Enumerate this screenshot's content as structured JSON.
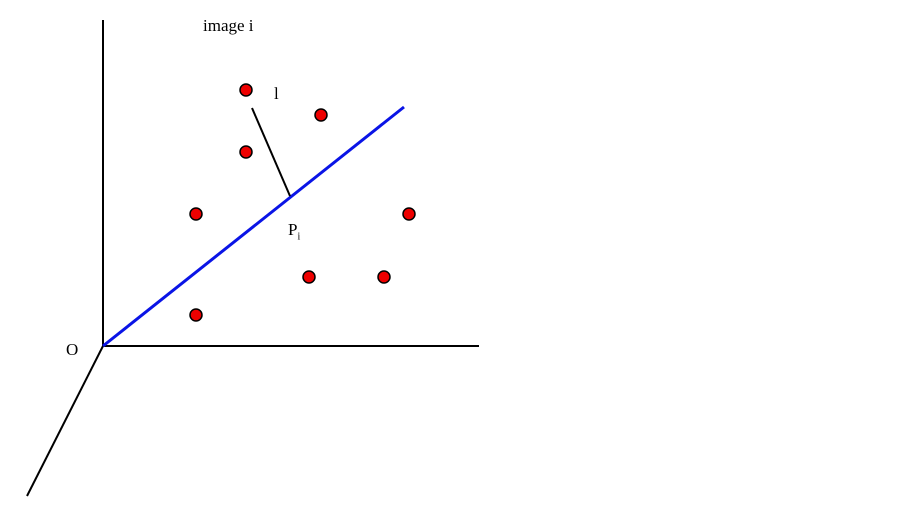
{
  "title": "image i",
  "labels": {
    "origin": "O",
    "distance": "l",
    "point": "P",
    "point_subscript": "i"
  },
  "colors": {
    "projection_line": "#0a14e6",
    "points": "#ee0000",
    "axes": "#000000"
  },
  "point_count": 8
}
